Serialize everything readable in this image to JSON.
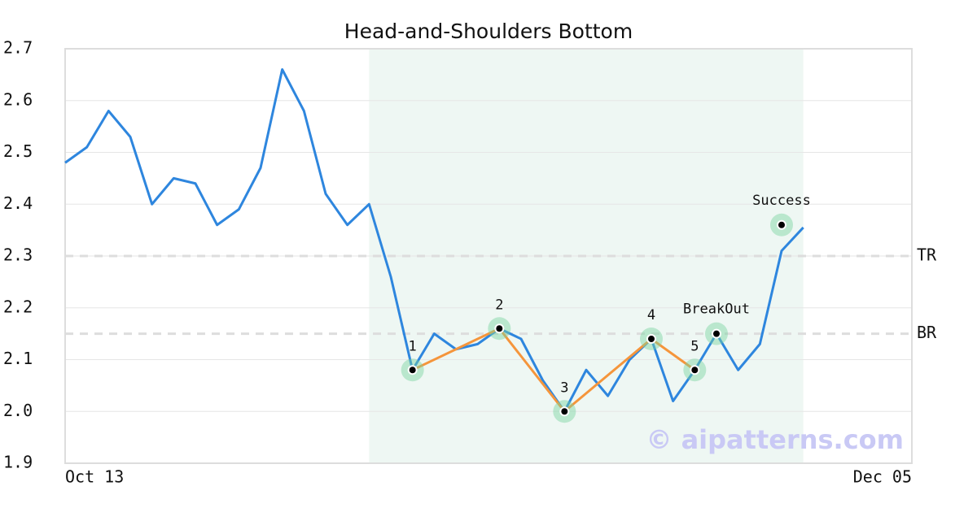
{
  "chart_data": {
    "type": "line",
    "title": "Head-and-Shoulders Bottom",
    "x": [
      0,
      1,
      2,
      3,
      4,
      5,
      6,
      7,
      8,
      9,
      10,
      11,
      12,
      13,
      14,
      15,
      16,
      17,
      18,
      19,
      20,
      21,
      22,
      23,
      24,
      25,
      26,
      27,
      28,
      29,
      30,
      31,
      32,
      33,
      34
    ],
    "values": [
      2.48,
      2.51,
      2.58,
      2.53,
      2.4,
      2.45,
      2.44,
      2.36,
      2.39,
      2.47,
      2.66,
      2.58,
      2.42,
      2.36,
      2.4,
      2.26,
      2.08,
      2.15,
      2.12,
      2.13,
      2.16,
      2.14,
      2.06,
      2.0,
      2.08,
      2.03,
      2.1,
      2.14,
      2.02,
      2.08,
      2.15,
      2.08,
      2.13,
      2.31,
      2.355
    ],
    "color": "#2e86de",
    "xlim": [
      0,
      39
    ],
    "xticks": [
      {
        "value": 0,
        "label": "Oct 13"
      },
      {
        "value": 39,
        "label": "Dec 05"
      }
    ],
    "ylim": [
      1.9,
      2.7
    ],
    "yticks": [
      1.9,
      {
        "value": 2.0,
        "label": "2.0"
      },
      2.1,
      2.2,
      2.3,
      2.4,
      2.5,
      2.6,
      2.7
    ],
    "grid": true,
    "highlight_range": [
      14,
      34
    ],
    "pattern_color": "#f5953b",
    "pattern_points": [
      {
        "label": "1",
        "x": 16,
        "value": 2.08
      },
      {
        "label": "2",
        "x": 20,
        "value": 2.16
      },
      {
        "label": "3",
        "x": 23,
        "value": 2.0
      },
      {
        "label": "4",
        "x": 27,
        "value": 2.14
      },
      {
        "label": "5",
        "x": 29,
        "value": 2.08
      }
    ],
    "annotations": [
      {
        "label": "BreakOut",
        "x": 30,
        "value": 2.15
      },
      {
        "label": "Success",
        "x": 33,
        "value": 2.36
      }
    ],
    "reference_lines": [
      {
        "label": "TR",
        "value": 2.3
      },
      {
        "label": "BR",
        "value": 2.15
      }
    ],
    "watermark": "© aipatterns.com"
  }
}
